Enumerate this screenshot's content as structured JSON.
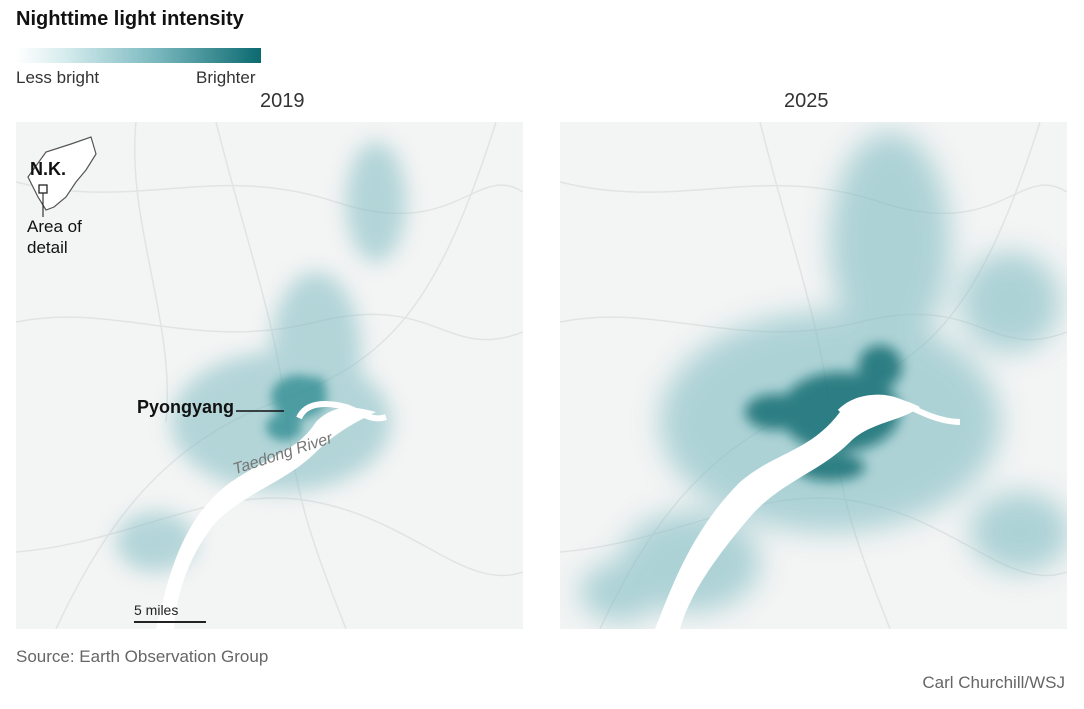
{
  "title": "Nighttime light intensity",
  "legend": {
    "low_label": "Less bright",
    "high_label": "Brighter",
    "colors": [
      "#ffffff",
      "#d6ecee",
      "#7fbcc2",
      "#0b6a70"
    ]
  },
  "panels": [
    {
      "year": "2019"
    },
    {
      "year": "2025"
    }
  ],
  "labels": {
    "city": "Pyongyang",
    "river": "Taedong River",
    "country": "N.K.",
    "area_of_detail": "Area of detail",
    "scale": "5 miles"
  },
  "colors": {
    "light": "#0b6a70",
    "background": "#f3f4f4",
    "river": "#ffffff"
  },
  "source": "Source: Earth Observation Group",
  "credit": "Carl Churchill/WSJ"
}
